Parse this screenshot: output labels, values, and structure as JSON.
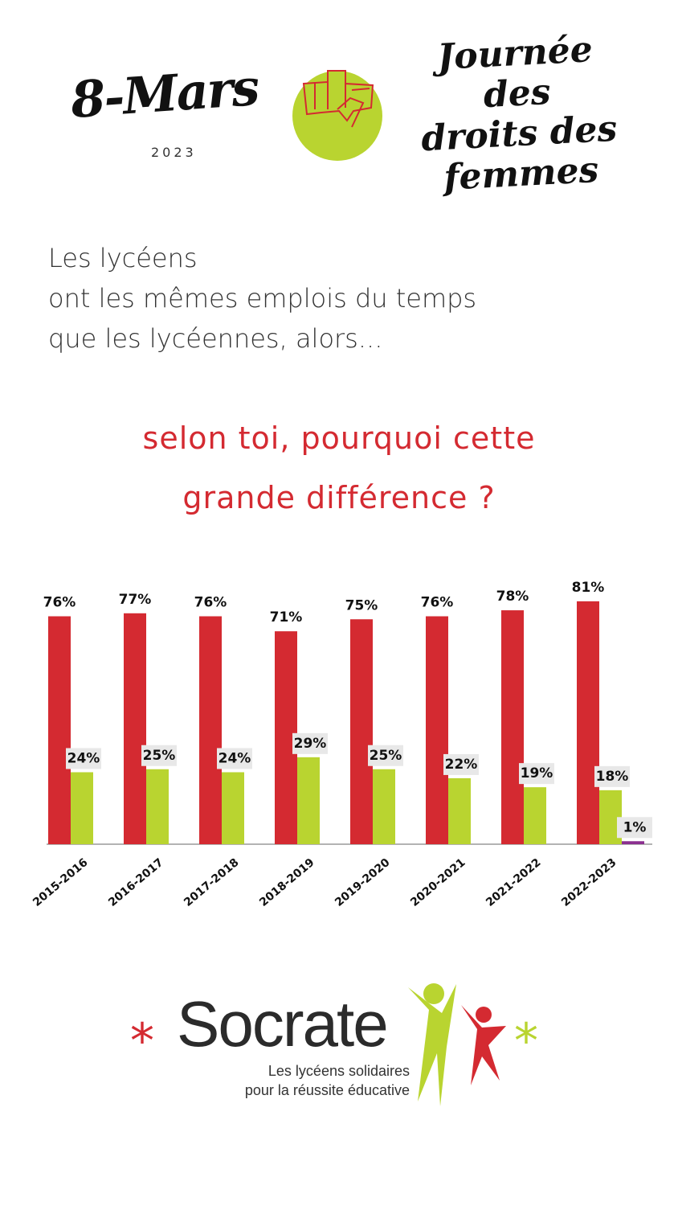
{
  "header": {
    "date_title": "8-Mars",
    "year": "2023",
    "day_title_lines": [
      "Journée des",
      "droits des",
      "femmes"
    ]
  },
  "intro_lines": [
    "Les lycéens",
    "ont les mêmes emplois du temps",
    "que les lycéennes, alors..."
  ],
  "question_lines": [
    "selon toi, pourquoi cette",
    "grande différence ?"
  ],
  "colors": {
    "red": "#d42a31",
    "green": "#b9d430",
    "purple": "#8b2f8f",
    "label_bg": "#e8e8e8"
  },
  "icons": [
    "raised-fist-icon",
    "socrate-figures-icon",
    "asterisk-icon"
  ],
  "chart_data": {
    "type": "bar",
    "categories": [
      "2015-2016",
      "2016-2017",
      "2017-2018",
      "2018-2019",
      "2019-2020",
      "2020-2021",
      "2021-2022",
      "2022-2023"
    ],
    "series": [
      {
        "values": [
          76,
          77,
          76,
          71,
          75,
          76,
          78,
          81
        ]
      },
      {
        "values": [
          24,
          25,
          24,
          29,
          25,
          22,
          19,
          18
        ]
      },
      {
        "values": [
          null,
          null,
          null,
          null,
          null,
          null,
          null,
          1
        ]
      }
    ],
    "data_labels": [
      [
        "76%",
        "77%",
        "76%",
        "71%",
        "75%",
        "76%",
        "78%",
        "81%"
      ],
      [
        "24%",
        "25%",
        "24%",
        "29%",
        "25%",
        "22%",
        "19%",
        "18%"
      ],
      [
        "",
        "",
        "",
        "",
        "",
        "",
        "",
        "1%"
      ]
    ],
    "ylim": [
      0,
      81
    ],
    "grid": false,
    "legend": "none"
  },
  "logo": {
    "name": "Socrate",
    "tagline_lines": [
      "Les lycéens solidaires",
      "pour la réussite éducative"
    ],
    "star": "*"
  }
}
